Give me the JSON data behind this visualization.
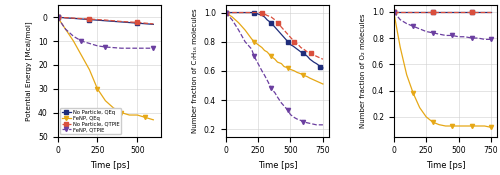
{
  "legend_labels": [
    "No Particle, QEq",
    "FeNP, QEq",
    "No Particle, QTPIE",
    "FeNP, QTPIE"
  ],
  "colors": [
    "#1f2d7b",
    "#e6a817",
    "#d94f3d",
    "#6b3fa0"
  ],
  "markers": [
    "s",
    "v",
    "s",
    "v"
  ],
  "linestyles": [
    "-",
    "-",
    "--",
    "--"
  ],
  "panel1": {
    "xlabel": "Time [ps]",
    "ylabel": "Potential Energy [Mcal/mol]",
    "xlim": [
      0,
      650
    ],
    "ylim": [
      50,
      -5
    ],
    "yticks": [
      0,
      10,
      20,
      30,
      40,
      50
    ],
    "xticks": [
      0,
      250,
      500
    ],
    "series": {
      "no_particle_qeq": {
        "x": [
          0,
          50,
          100,
          200,
          300,
          400,
          500,
          600
        ],
        "y": [
          0,
          0.3,
          0.5,
          1.0,
          1.5,
          2.0,
          2.5,
          3.0
        ]
      },
      "fenp_qeq": {
        "x": [
          0,
          100,
          200,
          250,
          300,
          350,
          400,
          450,
          500,
          550,
          600
        ],
        "y": [
          0,
          10,
          22,
          30,
          35,
          38,
          40,
          41,
          41,
          42,
          43
        ]
      },
      "no_particle_qtpie": {
        "x": [
          0,
          50,
          100,
          200,
          300,
          400,
          500,
          600
        ],
        "y": [
          0,
          0.2,
          0.4,
          0.8,
          1.2,
          1.8,
          2.2,
          2.8
        ]
      },
      "fenp_qtpie": {
        "x": [
          0,
          50,
          100,
          150,
          200,
          250,
          300,
          400,
          500,
          600
        ],
        "y": [
          0,
          5,
          8,
          10,
          11,
          12,
          12.5,
          13,
          13,
          13
        ]
      }
    }
  },
  "panel2": {
    "xlabel": "Time [ps]",
    "ylabel": "Number fraction of C₇H₁₆ molecules",
    "xlim": [
      0,
      800
    ],
    "ylim": [
      0.15,
      1.05
    ],
    "yticks": [
      0.2,
      0.4,
      0.6,
      0.8,
      1.0
    ],
    "xticks": [
      0,
      250,
      500,
      750
    ],
    "series": {
      "no_particle_qeq": {
        "x": [
          0,
          50,
          100,
          150,
          200,
          220,
          250,
          280,
          300,
          320,
          350,
          380,
          400,
          430,
          450,
          480,
          500,
          520,
          550,
          580,
          600,
          630,
          650,
          680,
          700,
          730,
          750
        ],
        "y": [
          1.0,
          1.0,
          1.0,
          1.0,
          1.0,
          1.0,
          0.99,
          0.98,
          0.97,
          0.95,
          0.93,
          0.9,
          0.88,
          0.85,
          0.83,
          0.8,
          0.78,
          0.77,
          0.75,
          0.73,
          0.72,
          0.7,
          0.68,
          0.66,
          0.65,
          0.63,
          0.62
        ]
      },
      "fenp_qeq": {
        "x": [
          0,
          50,
          100,
          150,
          200,
          220,
          250,
          280,
          300,
          320,
          350,
          380,
          400,
          430,
          450,
          480,
          500,
          530,
          550,
          580,
          600,
          630,
          650,
          700,
          750
        ],
        "y": [
          1.0,
          0.97,
          0.93,
          0.88,
          0.82,
          0.8,
          0.78,
          0.76,
          0.74,
          0.73,
          0.7,
          0.68,
          0.66,
          0.65,
          0.63,
          0.62,
          0.61,
          0.6,
          0.59,
          0.58,
          0.57,
          0.56,
          0.55,
          0.53,
          0.51
        ]
      },
      "no_particle_qtpie": {
        "x": [
          0,
          100,
          150,
          200,
          250,
          280,
          300,
          320,
          350,
          380,
          400,
          430,
          460,
          480,
          500,
          530,
          560,
          580,
          600,
          630,
          660,
          700,
          750
        ],
        "y": [
          1.0,
          1.0,
          1.0,
          1.0,
          1.0,
          1.0,
          0.99,
          0.98,
          0.97,
          0.95,
          0.93,
          0.9,
          0.87,
          0.85,
          0.83,
          0.8,
          0.78,
          0.76,
          0.75,
          0.73,
          0.72,
          0.7,
          0.68
        ]
      },
      "fenp_qtpie": {
        "x": [
          0,
          50,
          100,
          150,
          200,
          220,
          250,
          280,
          300,
          330,
          350,
          380,
          400,
          430,
          450,
          480,
          500,
          530,
          550,
          580,
          600,
          650,
          700,
          750
        ],
        "y": [
          1.0,
          0.95,
          0.88,
          0.8,
          0.75,
          0.7,
          0.65,
          0.6,
          0.57,
          0.52,
          0.48,
          0.45,
          0.42,
          0.38,
          0.36,
          0.33,
          0.3,
          0.28,
          0.27,
          0.26,
          0.25,
          0.24,
          0.23,
          0.23
        ]
      }
    }
  },
  "panel3": {
    "xlabel": "Time [ps]",
    "ylabel": "Number fraction of O₂ molecules",
    "xlim": [
      0,
      800
    ],
    "ylim": [
      0.05,
      1.05
    ],
    "yticks": [
      0.2,
      0.4,
      0.6,
      0.8,
      1.0
    ],
    "xticks": [
      0,
      250,
      500,
      750
    ],
    "series": {
      "no_particle_qeq": {
        "x": [
          0,
          100,
          200,
          300,
          400,
          500,
          600,
          700,
          750
        ],
        "y": [
          1.0,
          1.0,
          1.0,
          1.0,
          1.0,
          1.0,
          1.0,
          1.0,
          1.0
        ]
      },
      "fenp_qeq": {
        "x": [
          0,
          50,
          100,
          150,
          200,
          250,
          300,
          350,
          400,
          450,
          500,
          550,
          600,
          650,
          700,
          750
        ],
        "y": [
          1.0,
          0.73,
          0.52,
          0.38,
          0.27,
          0.2,
          0.16,
          0.14,
          0.13,
          0.13,
          0.13,
          0.13,
          0.13,
          0.13,
          0.13,
          0.12
        ]
      },
      "no_particle_qtpie": {
        "x": [
          0,
          100,
          200,
          300,
          400,
          500,
          600,
          700,
          750
        ],
        "y": [
          1.0,
          1.0,
          1.0,
          1.0,
          1.0,
          1.0,
          1.0,
          1.0,
          1.0
        ]
      },
      "fenp_qtpie": {
        "x": [
          0,
          50,
          100,
          150,
          200,
          250,
          300,
          350,
          400,
          450,
          500,
          550,
          600,
          650,
          700,
          750
        ],
        "y": [
          1.0,
          0.94,
          0.91,
          0.89,
          0.87,
          0.85,
          0.84,
          0.83,
          0.82,
          0.82,
          0.81,
          0.81,
          0.8,
          0.8,
          0.79,
          0.79
        ]
      }
    }
  }
}
